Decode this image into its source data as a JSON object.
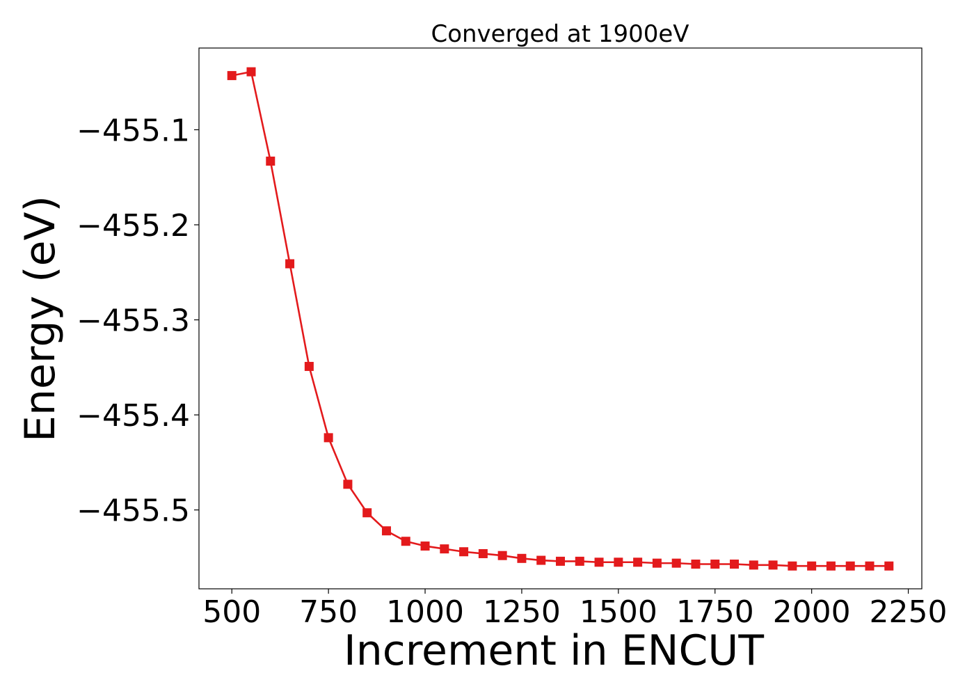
{
  "chart_data": {
    "type": "line",
    "title": "Converged at 1900eV",
    "xlabel": "Increment in ENCUT",
    "ylabel": "Energy (eV)",
    "xlim": [
      415,
      2285
    ],
    "ylim": [
      -455.583,
      -455.014
    ],
    "xticks": [
      500,
      750,
      1000,
      1250,
      1500,
      1750,
      2000,
      2250
    ],
    "yticks": [
      -455.1,
      -455.2,
      -455.3,
      -455.4,
      -455.5
    ],
    "ytick_labels": [
      "−455.1",
      "−455.2",
      "−455.3",
      "−455.4",
      "−455.5"
    ],
    "grid": false,
    "series": [
      {
        "color": "#e31a1c",
        "marker": "square",
        "x": [
          500,
          550,
          600,
          650,
          700,
          750,
          800,
          850,
          900,
          950,
          1000,
          1050,
          1100,
          1150,
          1200,
          1250,
          1300,
          1350,
          1400,
          1450,
          1500,
          1550,
          1600,
          1650,
          1700,
          1750,
          1800,
          1850,
          1900,
          1950,
          2000,
          2050,
          2100,
          2150,
          2200
        ],
        "y": [
          -455.043,
          -455.039,
          -455.133,
          -455.241,
          -455.349,
          -455.424,
          -455.473,
          -455.503,
          -455.522,
          -455.533,
          -455.538,
          -455.541,
          -455.544,
          -455.546,
          -455.548,
          -455.551,
          -455.553,
          -455.554,
          -455.554,
          -455.555,
          -455.555,
          -455.555,
          -455.556,
          -455.556,
          -455.557,
          -455.557,
          -455.557,
          -455.558,
          -455.558,
          -455.559,
          -455.559,
          -455.559,
          -455.559,
          -455.559,
          -455.559
        ]
      }
    ]
  }
}
